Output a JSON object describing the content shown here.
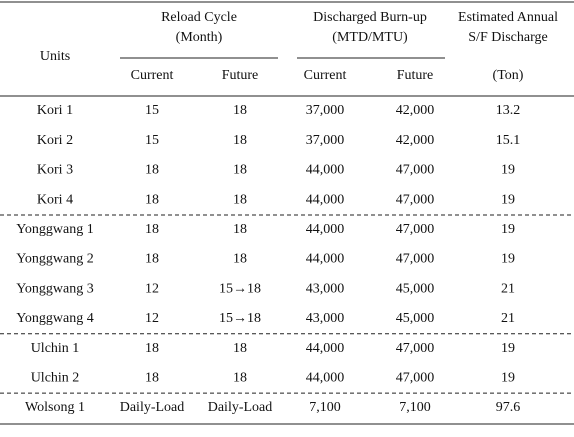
{
  "header": {
    "units": "Units",
    "reload_cycle": [
      "Reload Cycle",
      "(Month)"
    ],
    "burnup": [
      "Discharged Burn-up",
      "(MTD/MTU)"
    ],
    "discharge": [
      "Estimated Annual",
      "S/F Discharge"
    ],
    "subheaders": [
      "Current",
      "Future",
      "Current",
      "Future",
      "(Ton)"
    ]
  },
  "table": {
    "groups": [
      [
        [
          "Kori 1",
          "15",
          "18",
          "37,000",
          "42,000",
          "13.2"
        ],
        [
          "Kori 2",
          "15",
          "18",
          "37,000",
          "42,000",
          "15.1"
        ],
        [
          "Kori 3",
          "18",
          "18",
          "44,000",
          "47,000",
          "19"
        ],
        [
          "Kori 4",
          "18",
          "18",
          "44,000",
          "47,000",
          "19"
        ]
      ],
      [
        [
          "Yonggwang 1",
          "18",
          "18",
          "44,000",
          "47,000",
          "19"
        ],
        [
          "Yonggwang 2",
          "18",
          "18",
          "44,000",
          "47,000",
          "19"
        ],
        [
          "Yonggwang 3",
          "12",
          "15→18",
          "43,000",
          "45,000",
          "21"
        ],
        [
          "Yonggwang 4",
          "12",
          "15→18",
          "43,000",
          "45,000",
          "21"
        ]
      ],
      [
        [
          "Ulchin 1",
          "18",
          "18",
          "44,000",
          "47,000",
          "19"
        ],
        [
          "Ulchin 2",
          "18",
          "18",
          "44,000",
          "47,000",
          "19"
        ]
      ],
      [
        [
          "Wolsong 1",
          "Daily-Load",
          "Daily-Load",
          "7,100",
          "7,100",
          "97.6"
        ]
      ]
    ]
  }
}
